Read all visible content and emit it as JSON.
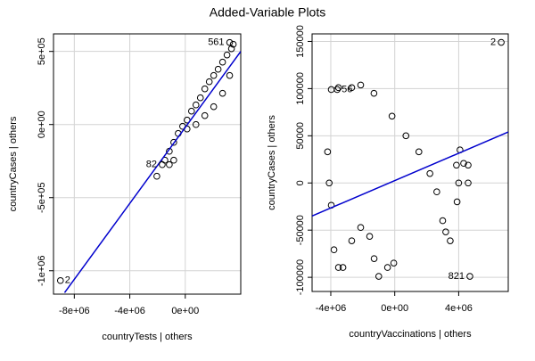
{
  "title": "Added-Variable Plots",
  "chart_data": [
    {
      "type": "scatter",
      "x_label": "countryTests | others",
      "y_label": "countryCases | others",
      "grid": true,
      "xlim": [
        -9500000,
        4000000
      ],
      "ylim": [
        -1160000,
        620000
      ],
      "xticks": [
        {
          "value": -8000000,
          "label": "-8e+06"
        },
        {
          "value": -4000000,
          "label": "-4e+06"
        },
        {
          "value": 0,
          "label": "0e+00"
        }
      ],
      "yticks": [
        {
          "value": -1000000,
          "label": "-1e+06"
        },
        {
          "value": -500000,
          "label": "-5e+05"
        },
        {
          "value": 0,
          "label": "0e+00"
        },
        {
          "value": 500000,
          "label": "5e+05"
        }
      ],
      "series": [
        {
          "color": "#000000",
          "x": [
            -2050000,
            -1470000,
            -1150000,
            -830000,
            -510000,
            -190000,
            130000,
            450000,
            770000,
            1090000,
            1410000,
            1730000,
            2050000,
            2370000,
            2690000,
            3010000,
            3330000,
            3460000,
            130000,
            770000,
            1410000,
            2050000,
            2690000,
            3200000,
            -1150000,
            -830000
          ],
          "y": [
            -353700,
            -243900,
            -182900,
            -122000,
            -61000,
            -12200,
            30500,
            91500,
            134100,
            182900,
            243900,
            292700,
            335400,
            378000,
            426800,
            475600,
            518300,
            548800,
            -30500,
            0,
            61000,
            122000,
            213400,
            335400,
            -274400,
            -243900
          ]
        }
      ],
      "labeled_points": [
        {
          "label": "561",
          "x": 3200000,
          "y": 561000
        },
        {
          "label": "82",
          "x": -1660000,
          "y": -274400
        },
        {
          "label": "2",
          "x": -9000000,
          "y": -1067000
        }
      ],
      "fit_line": {
        "color": "#0000cd",
        "x": [
          -8700000,
          4000000
        ],
        "y": [
          -1150000,
          500000
        ]
      }
    },
    {
      "type": "scatter",
      "x_label": "countryVaccinations | others",
      "y_label": "countryCases | others",
      "grid": true,
      "xlim": [
        -5170000,
        7100000
      ],
      "ylim": [
        -115000,
        158000
      ],
      "xticks": [
        {
          "value": -4000000,
          "label": "-4e+06"
        },
        {
          "value": 0,
          "label": "0e+00"
        },
        {
          "value": 4000000,
          "label": "4e+06"
        }
      ],
      "yticks": [
        -100000,
        -50000,
        0,
        50000,
        100000,
        150000
      ],
      "series": [
        {
          "color": "#000000",
          "x": [
            -3970000,
            -3520000,
            -2690000,
            -2130000,
            -1300000,
            -170000,
            700000,
            1510000,
            2200000,
            2630000,
            3000000,
            3190000,
            3470000,
            -4200000,
            -4100000,
            -3970000,
            -3800000,
            -3520000,
            -3240000,
            -2690000,
            -2130000,
            -1570000,
            -1290000,
            -1000000,
            -450000,
            -60000,
            3860000,
            4080000,
            4310000,
            4590000,
            4000000,
            3900000,
            4590000
          ],
          "y": [
            99000,
            101000,
            101000,
            103800,
            95000,
            70800,
            50000,
            33000,
            10000,
            -9400,
            -40000,
            -51900,
            -61300,
            33000,
            0,
            -23600,
            -70800,
            -89600,
            -89600,
            -61300,
            -47200,
            -56600,
            -80200,
            -99000,
            -89600,
            -84900,
            18900,
            35000,
            20800,
            18900,
            0,
            -20000,
            0
          ]
        }
      ],
      "labeled_points": [
        {
          "label": "56",
          "x": -3600000,
          "y": 99000
        },
        {
          "label": "821",
          "x": 4700000,
          "y": -99000
        },
        {
          "label": "2",
          "x": 6660000,
          "y": 149000
        }
      ],
      "fit_line": {
        "color": "#0000cd",
        "x": [
          -5170000,
          7100000
        ],
        "y": [
          -35000,
          54000
        ]
      }
    }
  ]
}
